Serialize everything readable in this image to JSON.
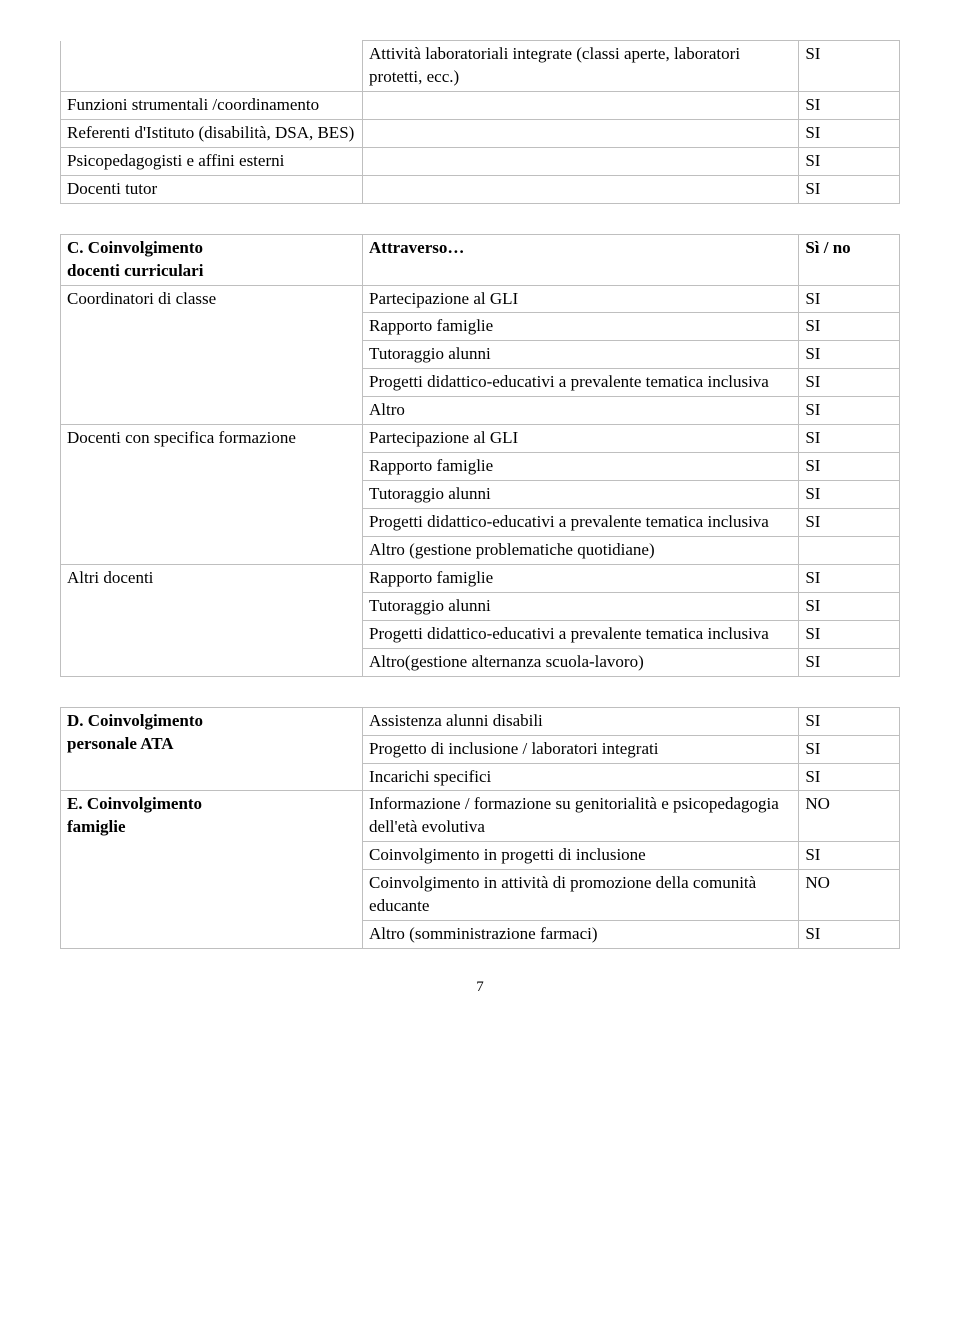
{
  "table1": {
    "rows": [
      {
        "c1": "",
        "c2": "Attività laboratoriali integrate (classi aperte, laboratori protetti, ecc.)",
        "c3": "SI"
      },
      {
        "c1": "Funzioni strumentali /coordinamento",
        "c2": "",
        "c3": "SI"
      },
      {
        "c1": "Referenti d'Istituto (disabilità, DSA, BES)",
        "c2": "",
        "c3": "SI"
      },
      {
        "c1": "Psicopedagogisti e affini esterni",
        "c2": "",
        "c3": "SI"
      },
      {
        "c1": "Docenti tutor",
        "c2": "",
        "c3": "SI"
      }
    ]
  },
  "table2": {
    "header": {
      "c1a": "C. Coinvolgimento",
      "c1b": "docenti curriculari",
      "c2": "Attraverso…",
      "c3": "Sì / no"
    },
    "groups": [
      {
        "label": "Coordinatori di classe",
        "rows": [
          {
            "c2": "Partecipazione al GLI",
            "c3": "SI"
          },
          {
            "c2": "Rapporto famiglie",
            "c3": "SI"
          },
          {
            "c2": "Tutoraggio alunni",
            "c3": "SI"
          },
          {
            "c2": "Progetti didattico-educativi a prevalente tematica inclusiva",
            "c3": "SI"
          },
          {
            "c2": "Altro",
            "c3": "SI"
          }
        ]
      },
      {
        "label": "Docenti con specifica formazione",
        "rows": [
          {
            "c2": "Partecipazione al GLI",
            "c3": "SI"
          },
          {
            "c2": "Rapporto famiglie",
            "c3": "SI"
          },
          {
            "c2": "Tutoraggio alunni",
            "c3": "SI"
          },
          {
            "c2": "Progetti didattico-educativi a prevalente tematica inclusiva",
            "c3": "SI"
          },
          {
            "c2": "Altro (gestione problematiche quotidiane)",
            "c3": ""
          }
        ]
      },
      {
        "label": "Altri docenti",
        "rows": [
          {
            "c2": "Rapporto famiglie",
            "c3": "SI"
          },
          {
            "c2": "Tutoraggio alunni",
            "c3": "SI"
          },
          {
            "c2": "Progetti didattico-educativi a prevalente tematica inclusiva",
            "c3": "SI"
          },
          {
            "c2": "Altro(gestione alternanza scuola-lavoro)",
            "c3": "SI"
          }
        ]
      }
    ]
  },
  "table3": {
    "groups": [
      {
        "label_a": "D. Coinvolgimento",
        "label_b": "personale ATA",
        "bold": true,
        "rows": [
          {
            "c2": "Assistenza alunni disabili",
            "c3": "SI"
          },
          {
            "c2": "Progetto di inclusione / laboratori integrati",
            "c3": "SI"
          },
          {
            "c2": "Incarichi specifici",
            "c3": "SI"
          }
        ]
      },
      {
        "label_a": "E. Coinvolgimento",
        "label_b": "famiglie",
        "bold": true,
        "rows": [
          {
            "c2": "Informazione / formazione su genitorialità e psicopedagogia dell'età evolutiva",
            "c3": "NO"
          },
          {
            "c2": "Coinvolgimento in progetti di inclusione",
            "c3": "SI"
          },
          {
            "c2": "Coinvolgimento in attività di promozione della comunità educante",
            "c3": "NO"
          },
          {
            "c2": "Altro (somministrazione farmaci)",
            "c3": "SI"
          }
        ]
      }
    ]
  },
  "pagenum": "7"
}
